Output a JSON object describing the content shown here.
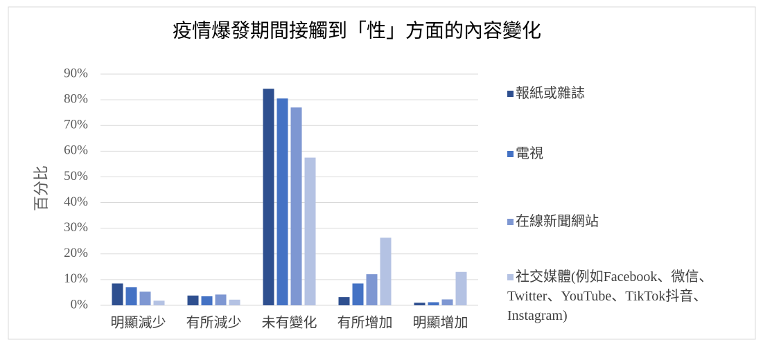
{
  "chart_data": {
    "type": "bar",
    "title": "疫情爆發期間接觸到「性」方面的內容變化",
    "y_label": "百分比",
    "categories": [
      "明顯減少",
      "有所減少",
      "未有變化",
      "有所增加",
      "明顯增加"
    ],
    "series": [
      {
        "name": "報紙或雜誌",
        "color": "#2e4f8f",
        "values": [
          8.5,
          3.8,
          84.3,
          3.2,
          1.0
        ]
      },
      {
        "name": "電視",
        "color": "#4472c4",
        "values": [
          7.0,
          3.5,
          80.5,
          8.5,
          1.2
        ]
      },
      {
        "name": "在線新聞網站",
        "color": "#7e97d2",
        "values": [
          5.3,
          4.2,
          77.0,
          12.1,
          2.3
        ]
      },
      {
        "name": "社交媒體(例如Facebook、微信、Twitter、YouTube、TikTok抖音、Instagram)",
        "color": "#b4c2e3",
        "values": [
          1.8,
          2.2,
          57.5,
          26.3,
          13.0
        ]
      }
    ],
    "ylim": [
      0,
      90
    ],
    "yticks": [
      {
        "value": 0,
        "label": "0%"
      },
      {
        "value": 10,
        "label": "10%"
      },
      {
        "value": 20,
        "label": "20%"
      },
      {
        "value": 30,
        "label": "30%"
      },
      {
        "value": 40,
        "label": "40%"
      },
      {
        "value": 50,
        "label": "50%"
      },
      {
        "value": 60,
        "label": "60%"
      },
      {
        "value": 70,
        "label": "70%"
      },
      {
        "value": 80,
        "label": "80%"
      },
      {
        "value": 90,
        "label": "90%"
      }
    ],
    "grid": true,
    "legend": "right"
  }
}
